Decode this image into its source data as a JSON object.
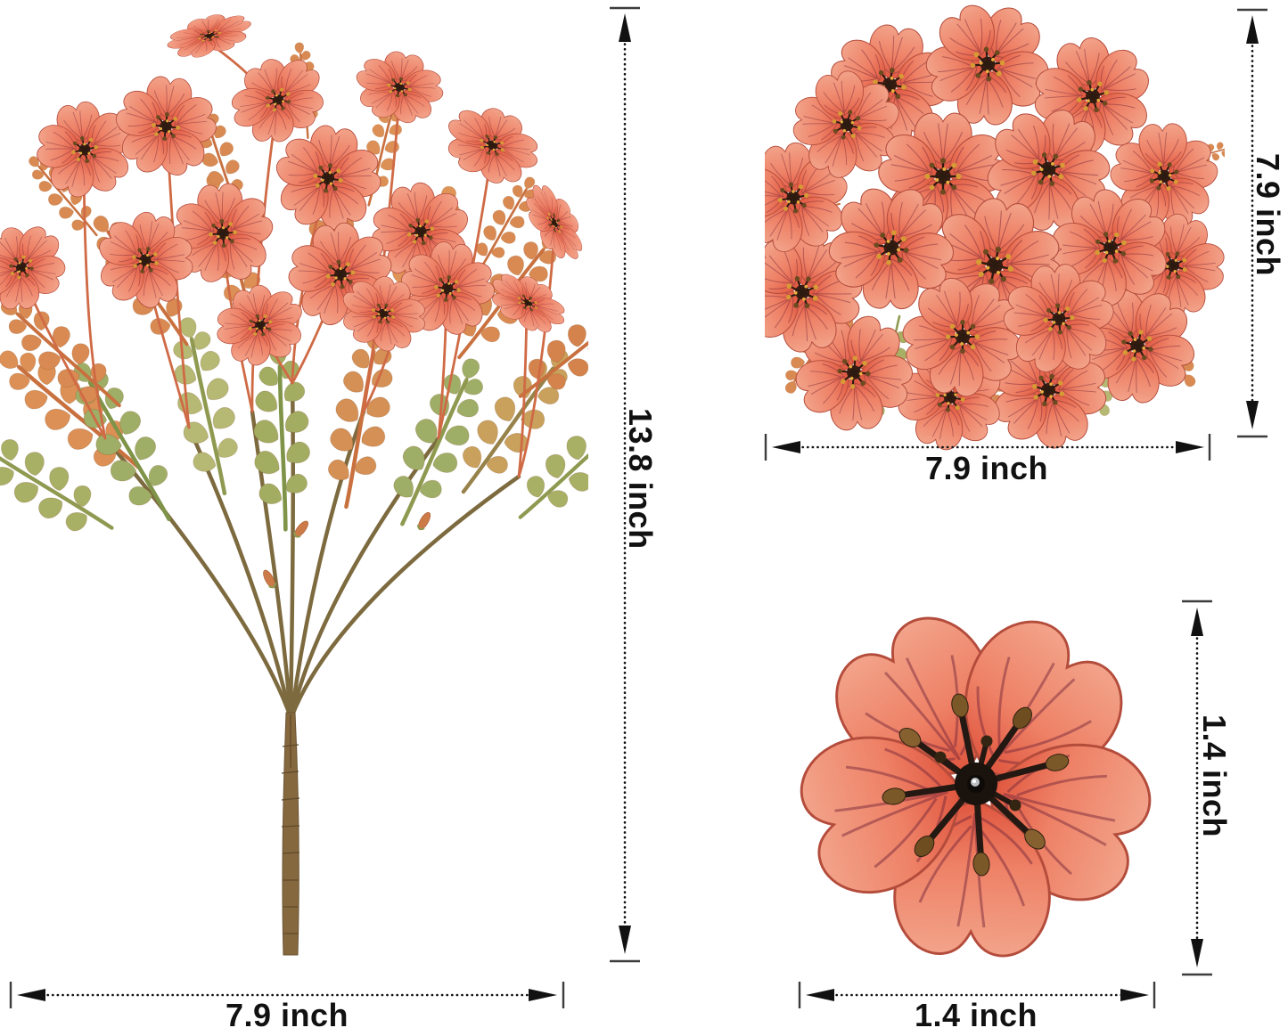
{
  "figure": {
    "type": "product-dimension-diagram",
    "background": "#ffffff",
    "views": {
      "bouquet": "artificial-flower-bush-side-view",
      "cluster": "flower-cluster-top-view",
      "single": "single-flower-close-up"
    }
  },
  "dimensions": {
    "unit": "inch",
    "bouquet_height": "13.8 inch",
    "bouquet_width": "7.9 inch",
    "cluster_height": "7.9 inch",
    "cluster_width": "7.9 inch",
    "flower_height": "1.4 inch",
    "flower_width": "1.4 inch"
  },
  "colors": {
    "petal_light": "#f2a58c",
    "petal_mid": "#ee8166",
    "petal_deep": "#dd4f38",
    "petal_vein": "#7a2a3c",
    "stamen_dark": "#2b1a10",
    "anther_orange": "#d79a35",
    "foliage_green": "#9fae66",
    "foliage_orange": "#d98a52",
    "stem_brown": "#85704a",
    "dimension_ink": "#111111"
  }
}
